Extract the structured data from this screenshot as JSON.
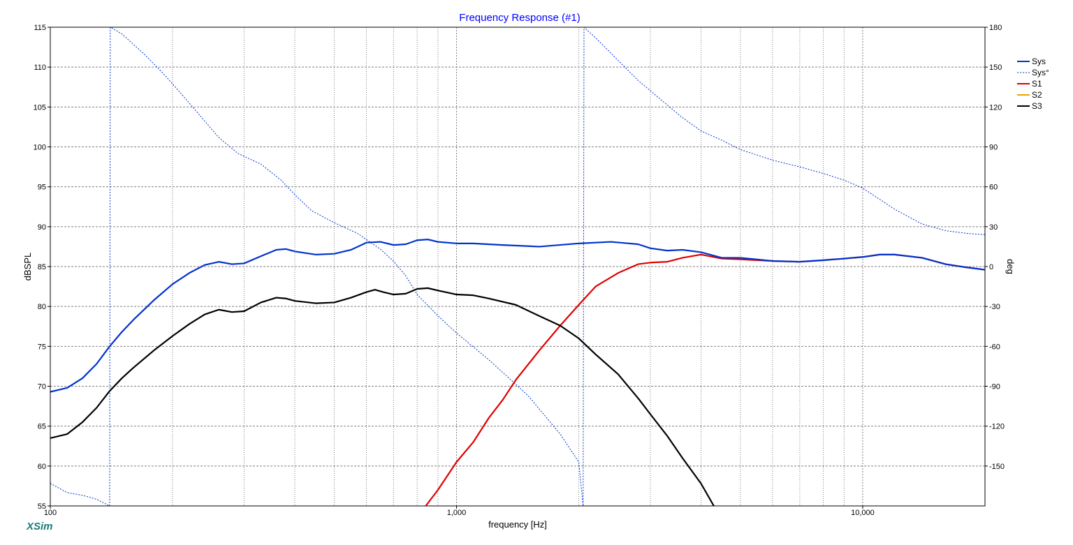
{
  "app": {
    "brand": "XSim"
  },
  "chart_data": {
    "type": "line",
    "title": "Frequency Response (#1)",
    "xlabel": "frequency [Hz]",
    "ylabel": "dBSPL",
    "y2label": "deg",
    "xscale": "log",
    "xlim": [
      100,
      20000
    ],
    "ylim": [
      55,
      115
    ],
    "y2lim": [
      -180,
      180
    ],
    "x_ticks": [
      {
        "value": 100,
        "label": "100"
      },
      {
        "value": 1000,
        "label": "1,000"
      },
      {
        "value": 10000,
        "label": "10,000"
      }
    ],
    "y_ticks": [
      55,
      60,
      65,
      70,
      75,
      80,
      85,
      90,
      95,
      100,
      105,
      110,
      115
    ],
    "y2_ticks": [
      -150,
      -120,
      -90,
      -60,
      -30,
      0,
      30,
      60,
      90,
      120,
      150,
      180
    ],
    "grid": true,
    "legend_position": "right",
    "colors": {
      "title": "#0000ff",
      "grid": "#808080"
    },
    "series": [
      {
        "name": "Sys",
        "color": "#0033cc",
        "style": "solid",
        "axis": "left",
        "points": [
          [
            100,
            69.3
          ],
          [
            110,
            69.8
          ],
          [
            120,
            71
          ],
          [
            130,
            72.8
          ],
          [
            140,
            75
          ],
          [
            150,
            76.8
          ],
          [
            160,
            78.3
          ],
          [
            180,
            80.8
          ],
          [
            200,
            82.8
          ],
          [
            220,
            84.2
          ],
          [
            240,
            85.2
          ],
          [
            260,
            85.6
          ],
          [
            280,
            85.3
          ],
          [
            300,
            85.4
          ],
          [
            330,
            86.3
          ],
          [
            360,
            87.1
          ],
          [
            380,
            87.2
          ],
          [
            400,
            86.9
          ],
          [
            450,
            86.5
          ],
          [
            500,
            86.6
          ],
          [
            550,
            87.1
          ],
          [
            600,
            88
          ],
          [
            650,
            88.1
          ],
          [
            700,
            87.7
          ],
          [
            750,
            87.8
          ],
          [
            800,
            88.3
          ],
          [
            850,
            88.4
          ],
          [
            900,
            88.1
          ],
          [
            1000,
            87.9
          ],
          [
            1100,
            87.9
          ],
          [
            1300,
            87.7
          ],
          [
            1600,
            87.5
          ],
          [
            2000,
            87.9
          ],
          [
            2400,
            88.1
          ],
          [
            2800,
            87.8
          ],
          [
            3000,
            87.3
          ],
          [
            3300,
            87
          ],
          [
            3600,
            87.1
          ],
          [
            4000,
            86.8
          ],
          [
            4500,
            86.1
          ],
          [
            5000,
            86.1
          ],
          [
            6000,
            85.7
          ],
          [
            7000,
            85.6
          ],
          [
            8000,
            85.8
          ],
          [
            9000,
            86
          ],
          [
            10000,
            86.2
          ],
          [
            11000,
            86.5
          ],
          [
            12000,
            86.5
          ],
          [
            14000,
            86.1
          ],
          [
            16000,
            85.3
          ],
          [
            18000,
            84.9
          ],
          [
            20000,
            84.6
          ]
        ]
      },
      {
        "name": "Sys°",
        "color": "#0033cc",
        "style": "dashed",
        "axis": "right",
        "points": [
          [
            100,
            -163
          ],
          [
            110,
            -170
          ],
          [
            120,
            -172
          ],
          [
            130,
            -175
          ],
          [
            140,
            -180
          ],
          [
            140.5,
            180
          ],
          [
            150,
            175
          ],
          [
            170,
            160
          ],
          [
            190,
            145
          ],
          [
            210,
            130
          ],
          [
            230,
            116
          ],
          [
            260,
            97
          ],
          [
            290,
            85
          ],
          [
            330,
            77
          ],
          [
            370,
            65
          ],
          [
            400,
            54
          ],
          [
            440,
            42
          ],
          [
            500,
            33
          ],
          [
            570,
            25
          ],
          [
            650,
            13
          ],
          [
            700,
            4
          ],
          [
            750,
            -7
          ],
          [
            800,
            -21
          ],
          [
            900,
            -37
          ],
          [
            1000,
            -50
          ],
          [
            1200,
            -70
          ],
          [
            1500,
            -97
          ],
          [
            1800,
            -126
          ],
          [
            2000,
            -147
          ],
          [
            2050,
            -180
          ],
          [
            2060,
            180
          ],
          [
            2200,
            172
          ],
          [
            2500,
            155
          ],
          [
            2800,
            140
          ],
          [
            3200,
            125
          ],
          [
            3600,
            112
          ],
          [
            4000,
            102
          ],
          [
            4500,
            95
          ],
          [
            5000,
            88
          ],
          [
            6000,
            80
          ],
          [
            7000,
            75
          ],
          [
            8000,
            70
          ],
          [
            9000,
            65
          ],
          [
            10000,
            59
          ],
          [
            12000,
            43
          ],
          [
            14000,
            32
          ],
          [
            16000,
            27
          ],
          [
            18000,
            25
          ],
          [
            20000,
            24
          ]
        ]
      },
      {
        "name": "S1",
        "color": "#e00000",
        "style": "solid",
        "axis": "left",
        "points": [
          [
            840,
            55
          ],
          [
            900,
            57
          ],
          [
            1000,
            60.5
          ],
          [
            1100,
            63
          ],
          [
            1200,
            66
          ],
          [
            1300,
            68.3
          ],
          [
            1400,
            70.8
          ],
          [
            1600,
            74.5
          ],
          [
            1800,
            77.6
          ],
          [
            2000,
            80.2
          ],
          [
            2200,
            82.5
          ],
          [
            2500,
            84.2
          ],
          [
            2800,
            85.3
          ],
          [
            3000,
            85.5
          ],
          [
            3300,
            85.6
          ],
          [
            3600,
            86.1
          ],
          [
            4000,
            86.5
          ],
          [
            4500,
            86
          ],
          [
            5000,
            85.9
          ],
          [
            6000,
            85.7
          ],
          [
            7000,
            85.6
          ],
          [
            8000,
            85.8
          ],
          [
            9000,
            86
          ],
          [
            10000,
            86.2
          ],
          [
            11000,
            86.5
          ],
          [
            12000,
            86.5
          ],
          [
            14000,
            86.1
          ],
          [
            16000,
            85.3
          ],
          [
            18000,
            84.9
          ],
          [
            20000,
            84.6
          ]
        ]
      },
      {
        "name": "S2",
        "color": "#f0a000",
        "style": "solid",
        "axis": "left",
        "points": []
      },
      {
        "name": "S3",
        "color": "#000000",
        "style": "solid",
        "axis": "left",
        "points": [
          [
            100,
            63.5
          ],
          [
            110,
            64
          ],
          [
            120,
            65.5
          ],
          [
            130,
            67.3
          ],
          [
            140,
            69.4
          ],
          [
            150,
            71
          ],
          [
            160,
            72.3
          ],
          [
            180,
            74.5
          ],
          [
            200,
            76.3
          ],
          [
            220,
            77.8
          ],
          [
            240,
            79
          ],
          [
            260,
            79.6
          ],
          [
            280,
            79.3
          ],
          [
            300,
            79.4
          ],
          [
            330,
            80.5
          ],
          [
            360,
            81.1
          ],
          [
            380,
            81
          ],
          [
            400,
            80.7
          ],
          [
            450,
            80.4
          ],
          [
            500,
            80.5
          ],
          [
            550,
            81.1
          ],
          [
            600,
            81.8
          ],
          [
            630,
            82.1
          ],
          [
            660,
            81.8
          ],
          [
            700,
            81.5
          ],
          [
            750,
            81.6
          ],
          [
            800,
            82.2
          ],
          [
            850,
            82.3
          ],
          [
            900,
            82
          ],
          [
            1000,
            81.5
          ],
          [
            1100,
            81.4
          ],
          [
            1200,
            81
          ],
          [
            1400,
            80.2
          ],
          [
            1600,
            78.8
          ],
          [
            1800,
            77.6
          ],
          [
            2000,
            76
          ],
          [
            2200,
            74
          ],
          [
            2500,
            71.5
          ],
          [
            2800,
            68.5
          ],
          [
            3000,
            66.5
          ],
          [
            3300,
            63.8
          ],
          [
            3600,
            61
          ],
          [
            4000,
            57.8
          ],
          [
            4300,
            55
          ]
        ]
      }
    ]
  }
}
